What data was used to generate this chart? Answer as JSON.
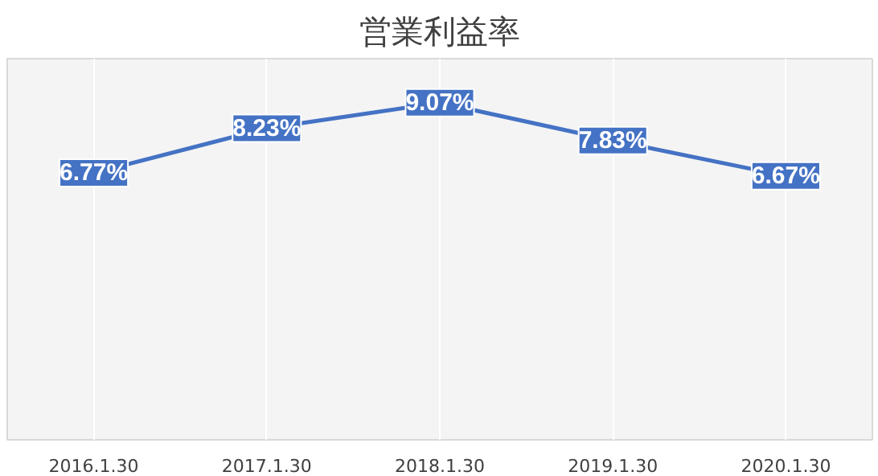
{
  "chart_data": {
    "type": "line",
    "title": "営業利益率",
    "categories": [
      "2016.1.30",
      "2017.1.30",
      "2018.1.30",
      "2019.1.30",
      "2020.1.30"
    ],
    "series": [
      {
        "color": "#4472c4",
        "values": [
          6.77,
          8.23,
          9.07,
          7.83,
          6.67
        ],
        "value_labels": [
          "6.77%",
          "8.23%",
          "9.07%",
          "7.83%",
          "6.67%"
        ]
      }
    ],
    "grid": "x",
    "line_style": "solid",
    "marker": "square"
  }
}
